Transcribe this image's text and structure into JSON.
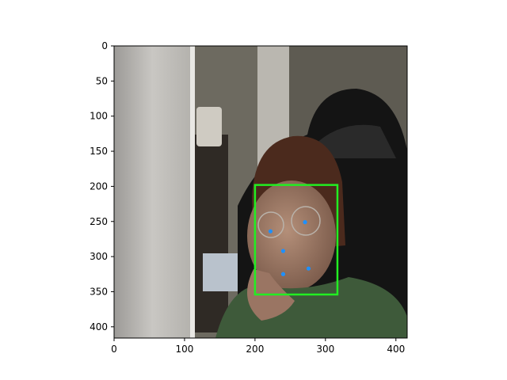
{
  "chart_data": {
    "type": "scatter",
    "title": "",
    "xlabel": "",
    "ylabel": "",
    "xlim": [
      0,
      416
    ],
    "ylim": [
      416,
      0
    ],
    "y_inverted": true,
    "grid": false,
    "legend": "none",
    "xticks": [
      0,
      100,
      200,
      300,
      400
    ],
    "yticks": [
      0,
      50,
      100,
      150,
      200,
      250,
      300,
      350,
      400
    ],
    "background": "photo: person wearing glasses in front of a black office chair",
    "face_box": {
      "x_min": 200,
      "y_min": 198,
      "x_max": 317,
      "y_max": 354,
      "color": "#22ee22"
    },
    "landmarks": {
      "color": "#1e90ff",
      "points": [
        {
          "name": "right-eye",
          "x": 222,
          "y": 264
        },
        {
          "name": "left-eye",
          "x": 271,
          "y": 251
        },
        {
          "name": "nose",
          "x": 240,
          "y": 292
        },
        {
          "name": "mouth-right",
          "x": 240,
          "y": 325
        },
        {
          "name": "mouth-left",
          "x": 276,
          "y": 317
        }
      ]
    }
  }
}
